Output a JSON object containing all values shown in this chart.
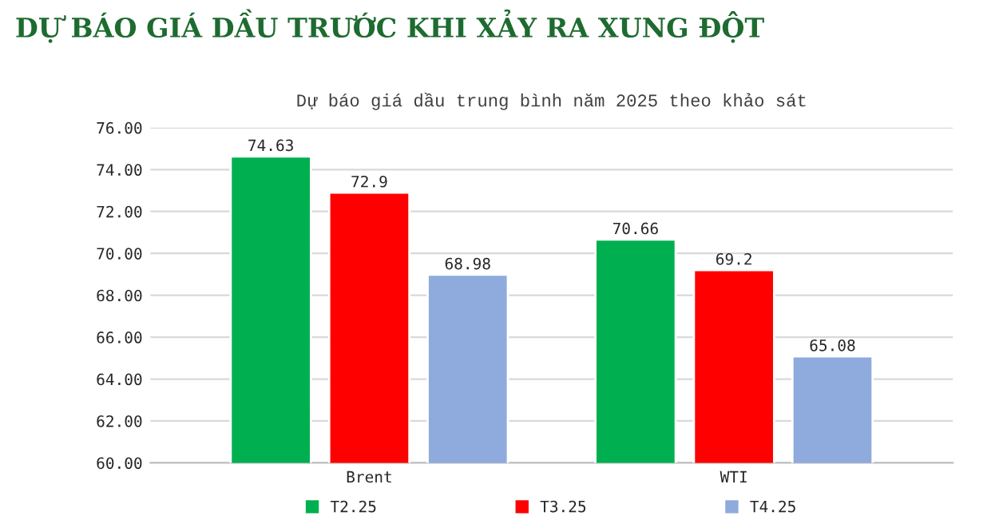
{
  "chart_data": {
    "type": "bar",
    "title": "DỰ BÁO GIÁ DẦU TRƯỚC KHI XẢY RA XUNG ĐỘT",
    "subtitle": "Dự báo giá dầu trung bình năm 2025 theo khảo sát",
    "categories": [
      "Brent",
      "WTI"
    ],
    "series": [
      {
        "name": "T2.25",
        "color": "#00b050",
        "values": [
          74.63,
          70.66
        ]
      },
      {
        "name": "T3.25",
        "color": "#ff0000",
        "values": [
          72.9,
          69.2
        ]
      },
      {
        "name": "T4.25",
        "color": "#8faadc",
        "values": [
          68.98,
          65.08
        ]
      }
    ],
    "ylim": [
      60,
      76
    ],
    "yticks": [
      {
        "value": 60,
        "label": "60.00"
      },
      {
        "value": 62,
        "label": "62.00"
      },
      {
        "value": 64,
        "label": "64.00"
      },
      {
        "value": 66,
        "label": "66.00"
      },
      {
        "value": 68,
        "label": "68.00"
      },
      {
        "value": 70,
        "label": "70.00"
      },
      {
        "value": 72,
        "label": "72.00"
      },
      {
        "value": 74,
        "label": "74.00"
      },
      {
        "value": 76,
        "label": "76.00"
      }
    ],
    "grid": "y",
    "legend": "bottom",
    "data_labels": true
  }
}
